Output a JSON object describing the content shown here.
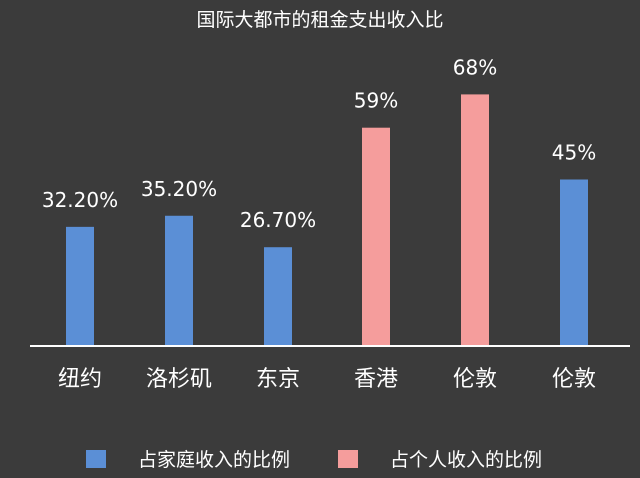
{
  "chart_data": {
    "type": "bar",
    "title": "国际大都市的租金支出收入比",
    "xlabel": "",
    "ylabel": "",
    "ylim": [
      0,
      80
    ],
    "grid": false,
    "legend_position": "bottom",
    "categories": [
      "纽约",
      "洛杉矶",
      "东京",
      "香港",
      "伦敦",
      "伦敦"
    ],
    "values": [
      32.2,
      35.2,
      26.7,
      59,
      68,
      45
    ],
    "value_labels": [
      "32.20%",
      "35.20%",
      "26.70%",
      "59%",
      "68%",
      "45%"
    ],
    "bar_series_index": [
      0,
      0,
      0,
      1,
      1,
      0
    ],
    "series": [
      {
        "name": "占家庭收入的比例",
        "color": "#5b8fd6"
      },
      {
        "name": "占个人收入的比例",
        "color": "#f59d9c"
      }
    ],
    "axis_color": "#ffffff",
    "background_color": "#3b3b3b"
  }
}
